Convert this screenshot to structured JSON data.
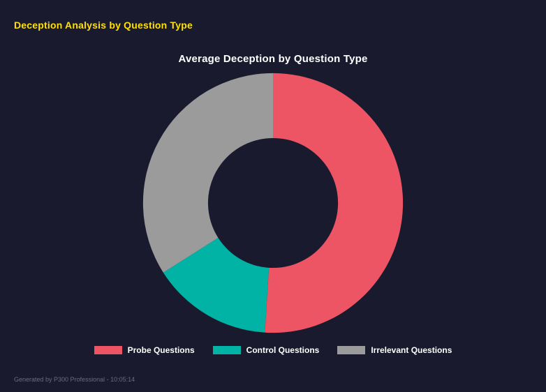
{
  "page": {
    "title": "Deception Analysis by Question Type",
    "footer": "Generated by P300 Professional - 10:05:14"
  },
  "chart_data": {
    "type": "pie",
    "subtype": "donut",
    "title": "Average Deception by Question Type",
    "categories": [
      "Probe Questions",
      "Control Questions",
      "Irrelevant Questions"
    ],
    "values": [
      51,
      15,
      34
    ],
    "unit": "percent-share",
    "colors": [
      "#ed5564",
      "#00b3a4",
      "#9b9b9b"
    ],
    "background_color": "#1a1a2e",
    "title_color": "#ffffff",
    "accent_color": "#ffe000",
    "legend_position": "bottom",
    "start_angle_deg": 0,
    "direction": "clockwise",
    "inner_radius_ratio": 0.5
  }
}
